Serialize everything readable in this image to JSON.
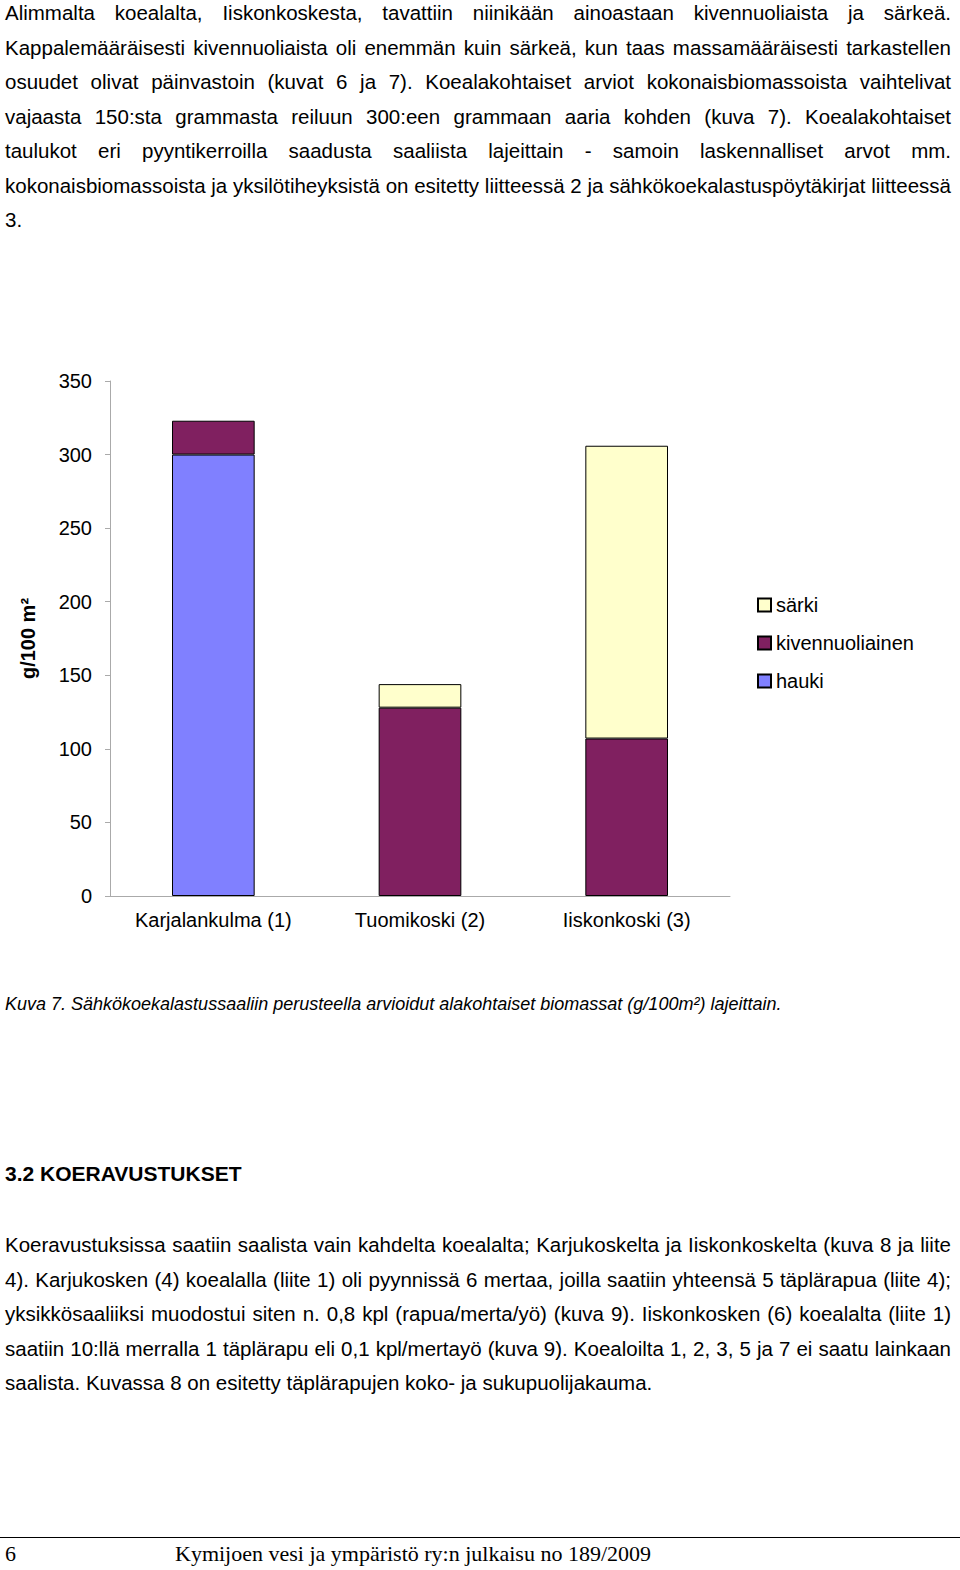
{
  "chart_data": {
    "type": "bar",
    "stacked": true,
    "categories": [
      "Karjalankulma (1)",
      "Tuomikoski (2)",
      "Iiskonkoski (3)"
    ],
    "series": [
      {
        "name": "hauki",
        "color": "#8080ff",
        "values": [
          300,
          null,
          null
        ]
      },
      {
        "name": "kivennuoliainen",
        "color": "#802060",
        "values": [
          23,
          128,
          107
        ]
      },
      {
        "name": "särki",
        "color": "#ffffcc",
        "values": [
          null,
          16,
          199
        ]
      }
    ],
    "ylabel": "g/100 m²",
    "ylim": [
      0,
      350
    ],
    "yticks": [
      0,
      50,
      100,
      150,
      200,
      250,
      300,
      350
    ],
    "grid": false,
    "legend": "right"
  },
  "document": {
    "paragraphs": [
      "Alimmalta koealalta, Iiskonkoskesta, tavattiin niinikään ainoastaan kivennuoliaista ja särkeä. Kappalemääräisesti kivennuoliaista oli enemmän kuin särkeä, kun taas massamääräisesti tarkastellen osuudet olivat päinvastoin (kuvat 6 ja 7). Koealakohtaiset arviot kokonaisbiomassoista vaihtelivat vajaasta 150:sta grammasta reiluun 300:een grammaan aaria kohden (kuva 7). Koealakohtaiset taulukot eri pyyntikerroilla saadusta saaliista lajeittain - samoin laskennalliset arvot mm. kokonaisbiomassoista ja yksilötiheyksistä on esitetty liitteessä 2 ja sähkökoekalastuspöytäkirjat liitteessä 3.",
      "Koeravustuksissa saatiin saalista vain kahdelta koealalta; Karjukoskelta ja Iiskonkoskelta (kuva 8 ja liite 4). Karjukosken (4) koealalla (liite 1) oli pyynnissä 6 mertaa, joilla saatiin yhteensä 5 täplärapua (liite 4); yksikkösaaliiksi muodostui siten n. 0,8 kpl (rapua/merta/yö) (kuva 9). Iiskonkosken (6) koealalta (liite 1) saatiin 10:llä merralla 1 täplärapu eli 0,1 kpl/mertayö (kuva 9). Koealoilta 1, 2, 3, 5 ja 7 ei saatu lainkaan saalista. Kuvassa 8 on esitetty täplärapujen koko- ja sukupuolijakauma."
    ],
    "caption": "Kuva 7. Sähkökoekalastussaaliin perusteella arvioidut alakohtaiset biomassat (g/100m²) lajeittain.",
    "heading": "3.2 KOERAVUSTUKSET",
    "footer": {
      "page": "6",
      "publication": "Kymijoen vesi ja ympäristö ry:n julkaisu no 189/2009"
    }
  }
}
